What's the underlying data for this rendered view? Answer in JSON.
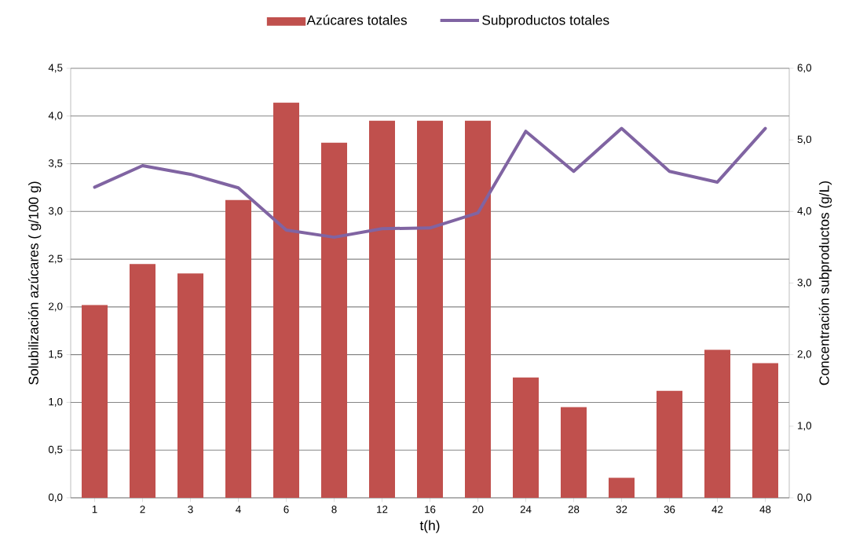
{
  "chart_data": {
    "type": "bar",
    "xlabel": "t(h)",
    "ylabel": "Solubilización azúcares ( g/100 g)",
    "y2label": "Concentración subproductos (g/L)",
    "categories": [
      "1",
      "2",
      "3",
      "4",
      "6",
      "8",
      "12",
      "16",
      "20",
      "24",
      "28",
      "32",
      "36",
      "42",
      "48"
    ],
    "series": [
      {
        "name": "Azúcares totales",
        "color": "#c0504d",
        "values": [
          2.02,
          2.45,
          2.35,
          3.12,
          4.14,
          3.72,
          3.95,
          3.95,
          3.95,
          1.26,
          0.95,
          0.21,
          1.12,
          1.55,
          1.41
        ]
      },
      {
        "name": "Subproductos totales",
        "type": "line",
        "axis": "y2",
        "color": "#8064a2",
        "values": [
          4.34,
          4.64,
          4.52,
          4.33,
          3.74,
          3.64,
          3.76,
          3.77,
          3.98,
          5.12,
          4.56,
          5.16,
          4.56,
          4.41,
          5.16
        ]
      }
    ],
    "ylim": [
      0,
      4.5
    ],
    "yticks": [
      {
        "value": 0,
        "label": "0,0"
      },
      {
        "value": 0.5,
        "label": "0,5"
      },
      {
        "value": 1,
        "label": "1,0"
      },
      {
        "value": 1.5,
        "label": "1,5"
      },
      {
        "value": 2,
        "label": "2,0"
      },
      {
        "value": 2.5,
        "label": "2,5"
      },
      {
        "value": 3,
        "label": "3,0"
      },
      {
        "value": 3.5,
        "label": "3,5"
      },
      {
        "value": 4,
        "label": "4,0"
      },
      {
        "value": 4.5,
        "label": "4,5"
      }
    ],
    "y2lim": [
      0,
      6
    ],
    "y2ticks": [
      {
        "value": 0,
        "label": "0,0"
      },
      {
        "value": 1,
        "label": "1,0"
      },
      {
        "value": 2,
        "label": "2,0"
      },
      {
        "value": 3,
        "label": "3,0"
      },
      {
        "value": 4,
        "label": "4,0"
      },
      {
        "value": 5,
        "label": "5,0"
      },
      {
        "value": 6,
        "label": "6,0"
      }
    ],
    "grid": "y",
    "legend": "top"
  }
}
